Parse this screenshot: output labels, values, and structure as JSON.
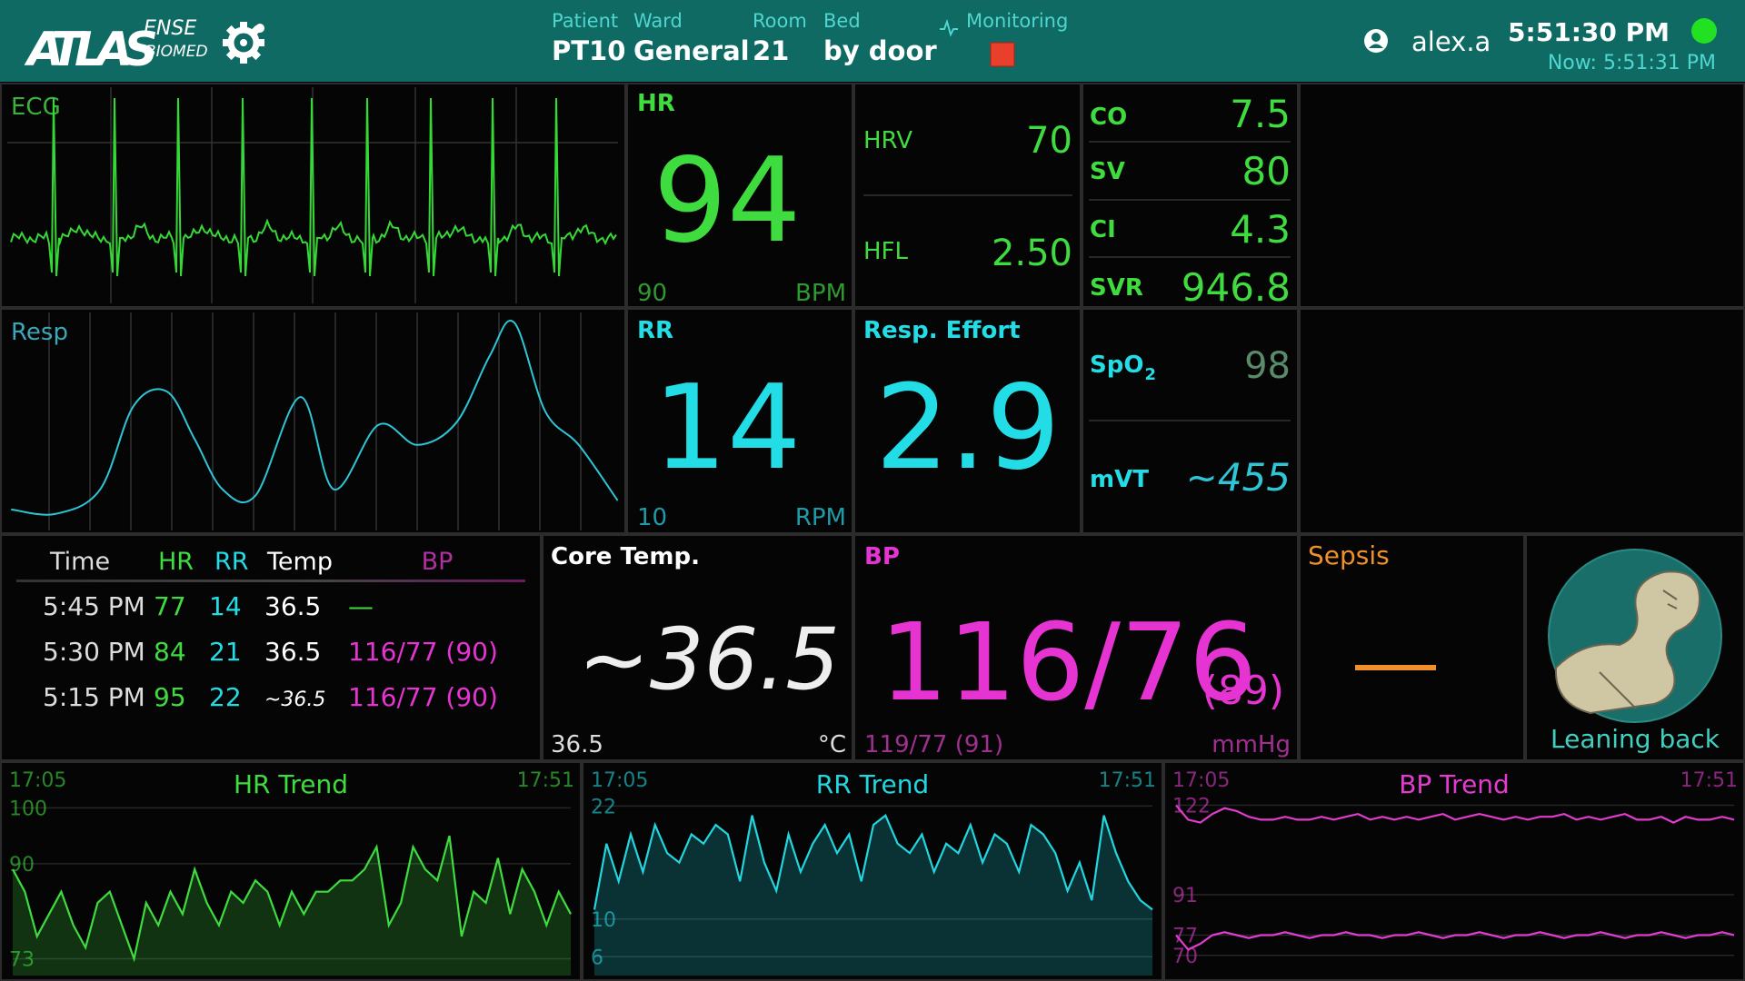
{
  "header": {
    "logo": "ATLAS",
    "logo_suffix": "ENSE",
    "logo_sub": "BIOMED",
    "patient": {
      "label": "Patient",
      "value": "PT10"
    },
    "ward": {
      "label": "Ward",
      "value": "General"
    },
    "room": {
      "label": "Room",
      "value": "21"
    },
    "bed": {
      "label": "Bed",
      "value": "by door"
    },
    "monitoring": "Monitoring",
    "user": "alex.a",
    "time": "5:51:30 PM",
    "now": "Now: 5:51:31 PM"
  },
  "waveforms": {
    "ecg": "ECG",
    "resp": "Resp"
  },
  "vitals": {
    "hr": {
      "label": "HR",
      "value": "94",
      "previous": "90",
      "unit": "BPM"
    },
    "hrv": {
      "label": "HRV",
      "value": "70"
    },
    "hfl": {
      "label": "HFL",
      "value": "2.50"
    },
    "co": {
      "label": "CO",
      "value": "7.5"
    },
    "sv": {
      "label": "SV",
      "value": "80"
    },
    "ci": {
      "label": "CI",
      "value": "4.3"
    },
    "svr": {
      "label": "SVR",
      "value": "946.8"
    },
    "rr": {
      "label": "RR",
      "value": "14",
      "previous": "10",
      "unit": "RPM"
    },
    "resp_effort": {
      "label": "Resp. Effort",
      "value": "2.9"
    },
    "spo2": {
      "label": "SpO",
      "label_sub": "2",
      "value": "98"
    },
    "mvt": {
      "label": "mVT",
      "value": "~455"
    },
    "core_temp": {
      "label": "Core Temp.",
      "value": "~36.5",
      "previous": "36.5",
      "unit": "°C"
    },
    "bp": {
      "label": "BP",
      "value": "116/76",
      "mean": "(89)",
      "previous": "119/77 (91)",
      "unit": "mmHg"
    },
    "sepsis": {
      "label": "Sepsis"
    },
    "posture": {
      "label": "Leaning back"
    }
  },
  "history_table": {
    "headers": [
      "Time",
      "HR",
      "RR",
      "Temp",
      "BP"
    ],
    "rows": [
      [
        "5:45 PM",
        "77",
        "14",
        "36.5",
        "—"
      ],
      [
        "5:30 PM",
        "84",
        "21",
        "36.5",
        "116/77 (90)"
      ],
      [
        "5:15 PM",
        "95",
        "22",
        "~36.5",
        "116/77 (90)"
      ]
    ]
  },
  "chart_data": [
    {
      "type": "line",
      "title": "HR Trend",
      "start_label": "17:05",
      "end_label": "17:51",
      "color": "#3fdc3f",
      "fill": true,
      "ylim": [
        70,
        102
      ],
      "yticks": [
        100,
        90,
        73
      ],
      "series": [
        {
          "color": "#3fdc3f",
          "values": [
            89,
            85,
            77,
            81,
            85,
            79,
            75,
            83,
            85,
            79,
            73,
            83,
            79,
            85,
            81,
            89,
            83,
            79,
            85,
            83,
            87,
            85,
            79,
            85,
            81,
            85,
            85,
            87,
            87,
            89,
            93,
            79,
            83,
            93,
            89,
            87,
            95,
            77,
            85,
            83,
            91,
            81,
            89,
            85,
            79,
            85,
            81
          ]
        }
      ]
    },
    {
      "type": "line",
      "title": "RR Trend",
      "start_label": "17:05",
      "end_label": "17:51",
      "color": "#22d6e0",
      "fill": true,
      "ylim": [
        4,
        23
      ],
      "yticks": [
        22,
        10,
        6
      ],
      "series": [
        {
          "color": "#22d6e0",
          "values": [
            11,
            18,
            14,
            19,
            15,
            20,
            17,
            16,
            19,
            18,
            20,
            19,
            14,
            21,
            16,
            13,
            19,
            15,
            18,
            20,
            17,
            19,
            14,
            20,
            21,
            18,
            17,
            19,
            15,
            18,
            17,
            20,
            16,
            19,
            18,
            15,
            20,
            19,
            17,
            13,
            16,
            12,
            21,
            17,
            14,
            12,
            11
          ]
        }
      ]
    },
    {
      "type": "line",
      "title": "BP Trend",
      "start_label": "17:05",
      "end_label": "17:51",
      "color": "#e23ccf",
      "fill": false,
      "ylim": [
        63,
        125
      ],
      "yticks": [
        122,
        91,
        77,
        70
      ],
      "series": [
        {
          "color": "#e23ccf",
          "values": [
            122,
            117,
            116,
            119,
            121,
            120,
            118,
            117,
            117,
            118,
            117,
            117,
            118,
            117,
            118,
            119,
            117,
            118,
            117,
            118,
            117,
            118,
            119,
            117,
            118,
            119,
            118,
            117,
            118,
            117,
            118,
            118,
            119,
            117,
            118,
            117,
            118,
            119,
            117,
            117,
            118,
            116,
            118,
            117,
            117,
            118,
            117
          ]
        },
        {
          "color": "#e23ccf",
          "values": [
            77,
            72,
            74,
            77,
            78,
            77,
            76,
            77,
            77,
            78,
            77,
            76,
            77,
            77,
            78,
            77,
            77,
            76,
            77,
            77,
            78,
            77,
            76,
            77,
            77,
            78,
            77,
            76,
            77,
            77,
            78,
            77,
            76,
            77,
            77,
            78,
            77,
            76,
            77,
            77,
            78,
            77,
            76,
            77,
            77,
            78,
            77
          ]
        }
      ]
    }
  ]
}
